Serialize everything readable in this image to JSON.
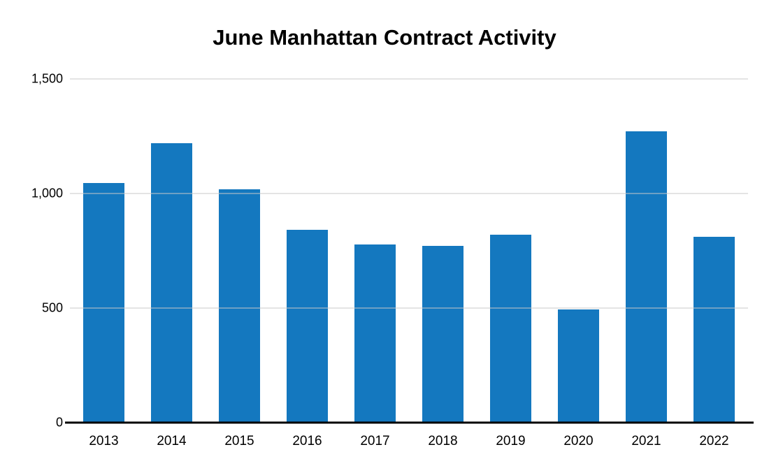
{
  "chart_data": {
    "type": "bar",
    "title": "June Manhattan Contract Activity",
    "categories": [
      "2013",
      "2014",
      "2015",
      "2016",
      "2017",
      "2018",
      "2019",
      "2020",
      "2021",
      "2022"
    ],
    "values": [
      1045,
      1220,
      1018,
      840,
      777,
      772,
      820,
      493,
      1270,
      812
    ],
    "xlabel": "",
    "ylabel": "",
    "ylim": [
      0,
      1500
    ],
    "yticks": [
      {
        "value": 0,
        "label": "0"
      },
      {
        "value": 500,
        "label": "500"
      },
      {
        "value": 1000,
        "label": "1,000"
      },
      {
        "value": 1500,
        "label": "1,500"
      }
    ],
    "grid": true,
    "legend_position": "none",
    "bar_color": "#1478bf",
    "gridline_color": "#c9c9c9",
    "axis_color": "#000000",
    "background_color": "#ffffff"
  }
}
